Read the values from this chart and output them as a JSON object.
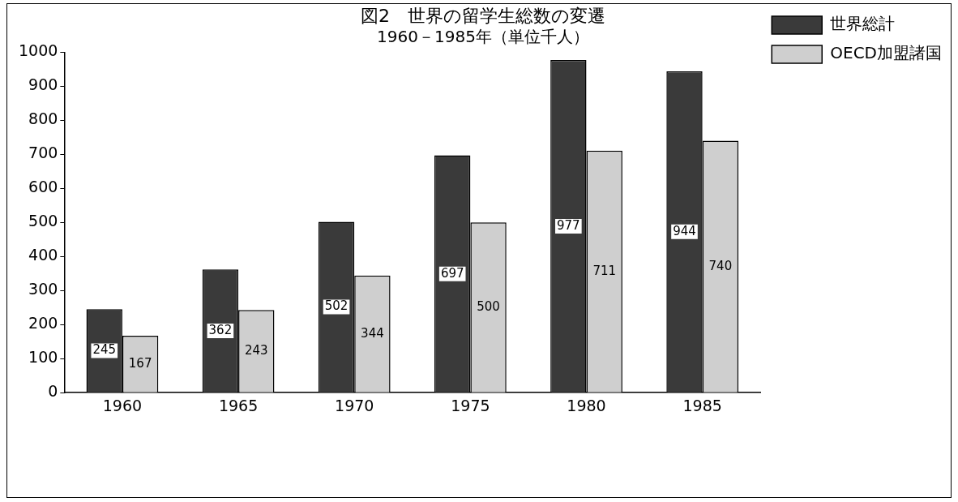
{
  "chart_data": {
    "type": "bar",
    "title": "図2　世界の留学生総数の変遷",
    "subtitle": "1960－1985年（単位千人）",
    "categories": [
      "1960",
      "1965",
      "1970",
      "1975",
      "1980",
      "1985"
    ],
    "series": [
      {
        "name": "世界総計",
        "color": "#3a3a3a",
        "values": [
          245,
          362,
          502,
          697,
          977,
          944
        ]
      },
      {
        "name": "OECD加盟諸国",
        "color": "#cfcfcf",
        "values": [
          167,
          243,
          344,
          500,
          711,
          740
        ]
      }
    ],
    "ylim": [
      0,
      1000
    ],
    "yticks": [
      0,
      100,
      200,
      300,
      400,
      500,
      600,
      700,
      800,
      900,
      1000
    ],
    "grid": false,
    "legend": "top right",
    "data_labels": true
  }
}
